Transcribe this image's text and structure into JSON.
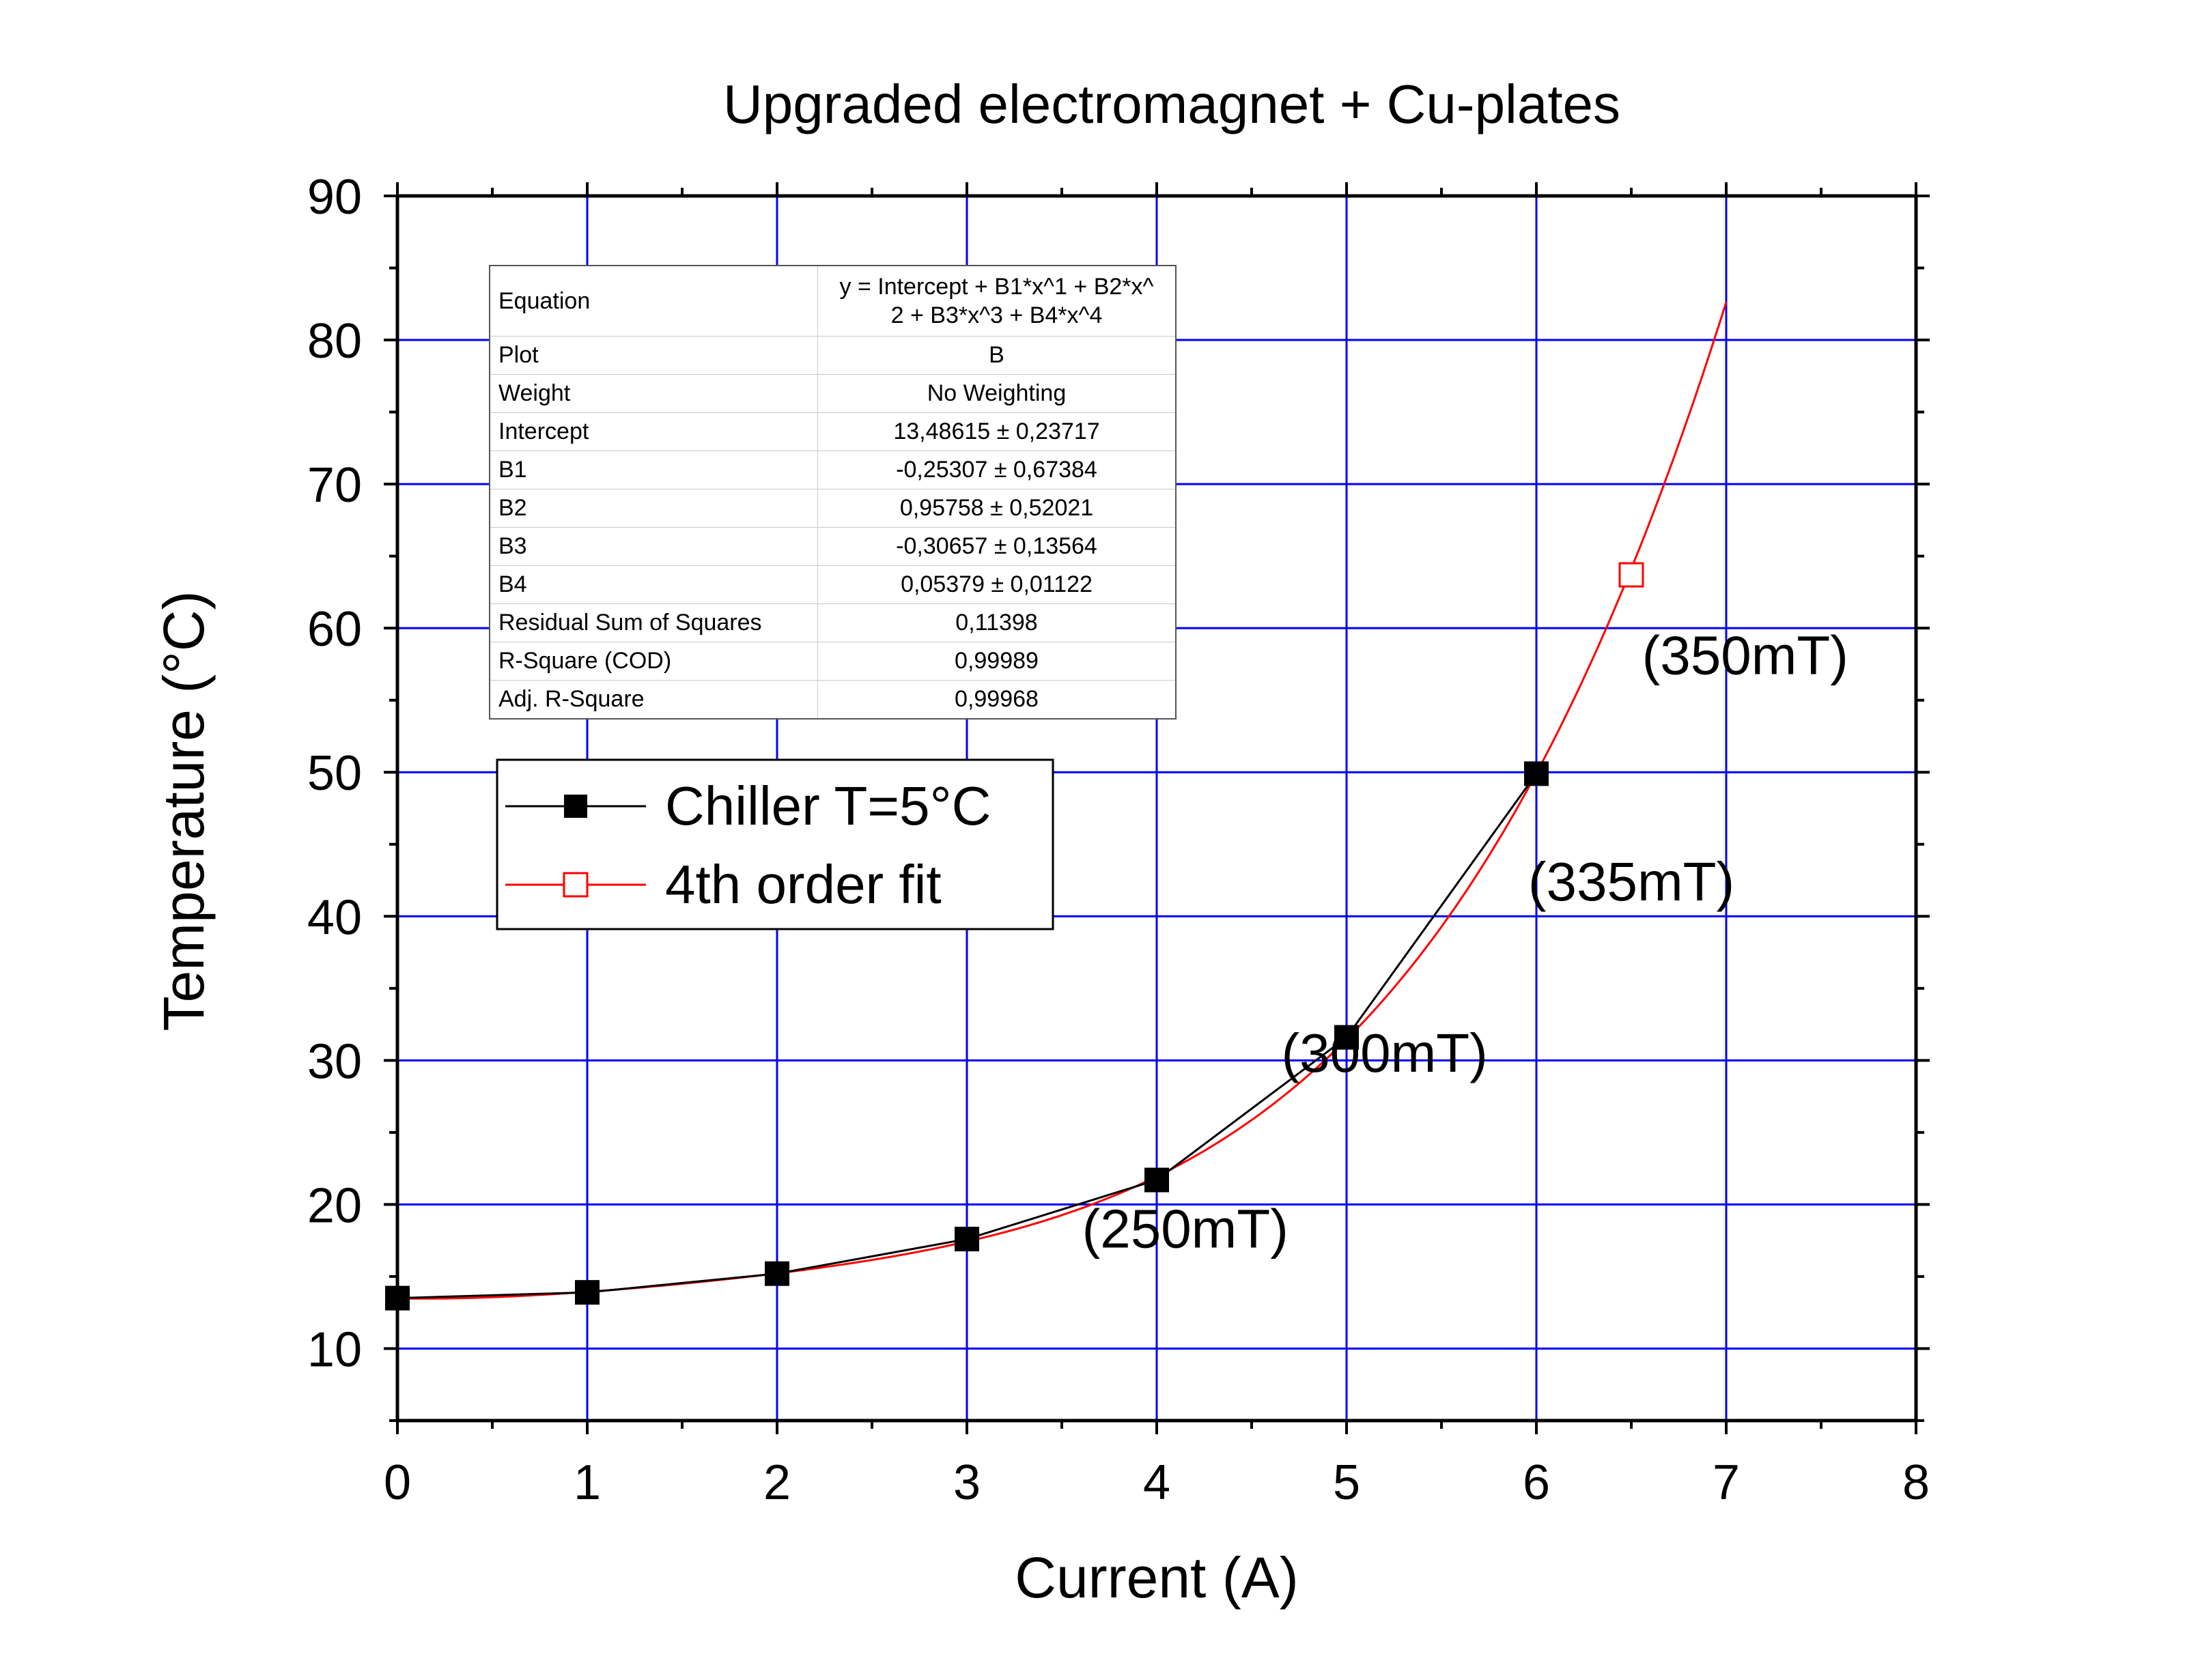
{
  "chart_data": {
    "type": "line",
    "title": "Upgraded electromagnet + Cu-plates",
    "xlabel": "Current (A)",
    "ylabel": "Temperature (°C)",
    "xlim": [
      0,
      8
    ],
    "ylim": [
      5,
      90
    ],
    "grid": true,
    "xticks": [
      0,
      1,
      2,
      3,
      4,
      5,
      6,
      7,
      8
    ],
    "xtick_labels": [
      "0",
      "1",
      "2",
      "3",
      "4",
      "5",
      "6",
      "7",
      "8"
    ],
    "yticks": [
      10,
      20,
      30,
      40,
      50,
      60,
      70,
      80,
      90
    ],
    "ytick_labels": [
      "10",
      "20",
      "30",
      "40",
      "50",
      "60",
      "70",
      "80",
      "90"
    ],
    "series": [
      {
        "name": "Chiller T=5°C",
        "color": "#000000",
        "marker": "filled-square",
        "x": [
          0,
          1,
          2,
          3,
          4,
          5,
          6
        ],
        "y": [
          13.5,
          13.9,
          15.2,
          17.6,
          21.7,
          31.6,
          49.9
        ]
      },
      {
        "name": "4th order fit",
        "color": "#ff0000",
        "marker": "open-square",
        "type": "polynomial-fit",
        "coefficients": [
          13.48615,
          -0.25307,
          0.95758,
          -0.30657,
          0.05379
        ],
        "x_range": [
          0,
          7
        ],
        "marker_points": [
          {
            "x": 6.5,
            "y": 63.7
          }
        ]
      }
    ],
    "legend": {
      "position": "upper-left",
      "entries": [
        "Chiller T=5°C",
        "4th order fit"
      ]
    },
    "annotations": [
      {
        "text": "(250mT)",
        "x": 4.15,
        "y": 17.0
      },
      {
        "text": "(300mT)",
        "x": 5.2,
        "y": 29.2
      },
      {
        "text": "(335mT)",
        "x": 6.5,
        "y": 41.1
      },
      {
        "text": "(350mT)",
        "x": 7.1,
        "y": 56.8
      }
    ],
    "fit_table": {
      "rows": [
        {
          "key": "Equation",
          "value_line1": "y = Intercept + B1*x^1 + B2*x^",
          "value_line2": "2 + B3*x^3 + B4*x^4"
        },
        {
          "key": "Plot",
          "value": "B"
        },
        {
          "key": "Weight",
          "value": "No Weighting"
        },
        {
          "key": "Intercept",
          "value": "13,48615 ± 0,23717"
        },
        {
          "key": "B1",
          "value": "-0,25307 ± 0,67384"
        },
        {
          "key": "B2",
          "value": "0,95758 ± 0,52021"
        },
        {
          "key": "B3",
          "value": "-0,30657 ± 0,13564"
        },
        {
          "key": "B4",
          "value": "0,05379 ± 0,01122"
        },
        {
          "key": "Residual Sum of Squares",
          "value": "0,11398"
        },
        {
          "key": "R-Square (COD)",
          "value": "0,99989"
        },
        {
          "key": "Adj. R-Square",
          "value": "0,99968"
        }
      ]
    },
    "colors": {
      "grid": "#0000ff",
      "axes": "#000000",
      "fit": "#ff0000",
      "data": "#000000"
    }
  }
}
